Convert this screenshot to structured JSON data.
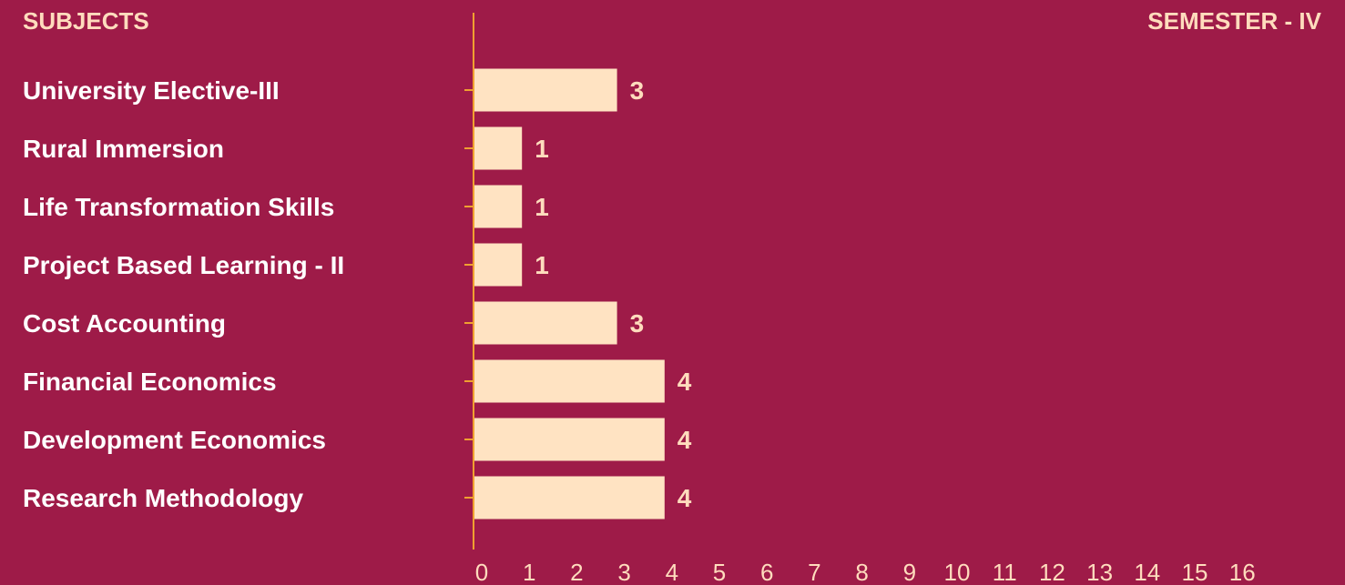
{
  "header": {
    "left_title": "SUBJECTS",
    "right_title": "SEMESTER - IV"
  },
  "colors": {
    "background": "#9e1b48",
    "bar": "#ffe3c2",
    "axis": "#f0a030",
    "label_text": "#ffffff",
    "value_text": "#ffdcbd",
    "tick_text": "#ffdcbd"
  },
  "chart_data": {
    "type": "bar",
    "orientation": "horizontal",
    "categories": [
      "University Elective-III",
      "Rural Immersion",
      "Life Transformation Skills",
      "Project Based Learning - II",
      "Cost Accounting",
      "Financial Economics",
      "Development Economics",
      "Research Methodology"
    ],
    "values": [
      3,
      1,
      1,
      1,
      3,
      4,
      4,
      4
    ],
    "x_ticks": [
      0,
      1,
      2,
      3,
      4,
      5,
      6,
      7,
      8,
      9,
      10,
      11,
      12,
      13,
      14,
      15,
      16
    ],
    "xlim": [
      0,
      16
    ],
    "grid": false,
    "legend": "none"
  }
}
